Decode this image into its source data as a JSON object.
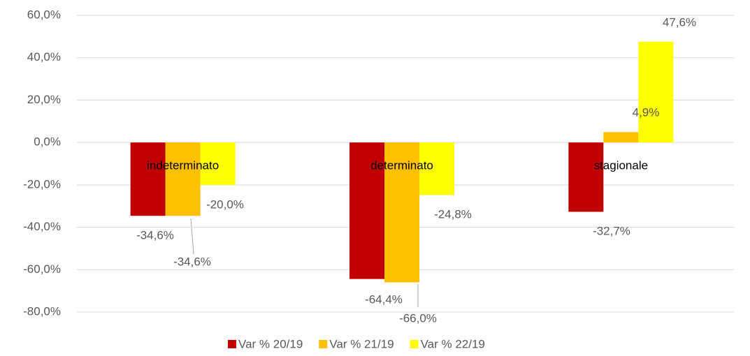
{
  "chart_data": {
    "type": "bar",
    "categories": [
      "indeterminato",
      "determinato",
      "stagionale"
    ],
    "series": [
      {
        "name": "Var % 20/19",
        "color": "#c00000",
        "values": [
          -34.6,
          -64.4,
          -32.7
        ],
        "value_labels": [
          "-34,6%",
          "-64,4%",
          "-32,7%"
        ]
      },
      {
        "name": "Var % 21/19",
        "color": "#ffc000",
        "values": [
          -34.6,
          -66.0,
          4.9
        ],
        "value_labels": [
          "-34,6%",
          "-66,0%",
          "4,9%"
        ]
      },
      {
        "name": "Var % 22/19",
        "color": "#ffff00",
        "values": [
          -20.0,
          -24.8,
          47.6
        ],
        "value_labels": [
          "-20,0%",
          "-24,8%",
          "47,6%"
        ]
      }
    ],
    "ylim": [
      -80,
      60
    ],
    "yticks": [
      {
        "value": -80,
        "label": "-80,0%"
      },
      {
        "value": -60,
        "label": "-60,0%"
      },
      {
        "value": -40,
        "label": "-40,0%"
      },
      {
        "value": -20,
        "label": "-20,0%"
      },
      {
        "value": 0,
        "label": "0,0%"
      },
      {
        "value": 20,
        "label": "20,0%"
      },
      {
        "value": 40,
        "label": "40,0%"
      },
      {
        "value": 60,
        "label": "60,0%"
      }
    ],
    "grid": true,
    "legend": "bottom"
  }
}
